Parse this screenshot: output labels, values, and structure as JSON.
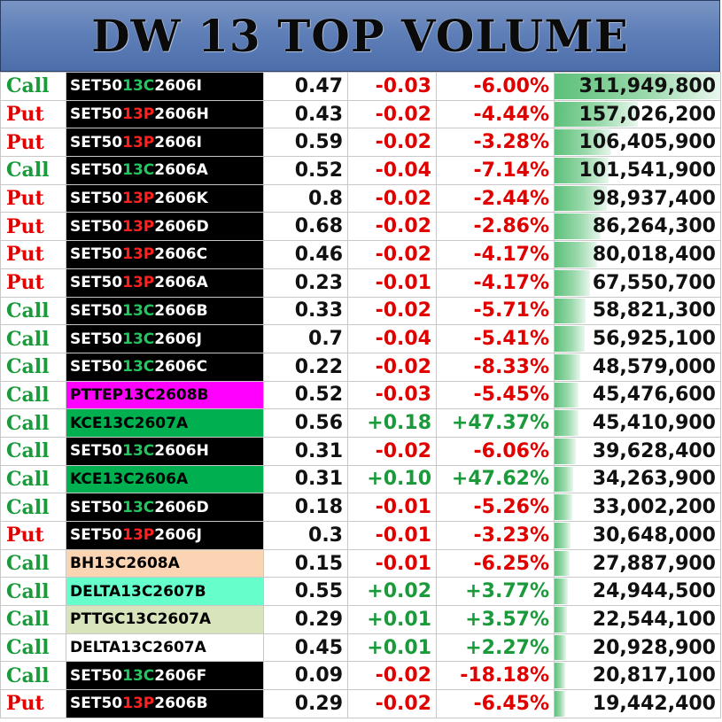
{
  "header": {
    "title": "DW 13 TOP VOLUME"
  },
  "colors": {
    "call": "#1a9a3a",
    "put": "#e00000",
    "set_bg": "#000000",
    "bar": "#5cc07a"
  },
  "rows": [
    {
      "type": "Call",
      "name": {
        "kind": "set",
        "a": "SET50",
        "b": "13C",
        "c": "2606I"
      },
      "price": "0.47",
      "change": "-0.03",
      "pct": "-6.00%",
      "volume": "311,949,800",
      "volume_value": 311949800
    },
    {
      "type": "Put",
      "name": {
        "kind": "set",
        "a": "SET50",
        "b": "13P",
        "c": "2606H"
      },
      "price": "0.43",
      "change": "-0.02",
      "pct": "-4.44%",
      "volume": "157,026,200",
      "volume_value": 157026200
    },
    {
      "type": "Put",
      "name": {
        "kind": "set",
        "a": "SET50",
        "b": "13P",
        "c": "2606I"
      },
      "price": "0.59",
      "change": "-0.02",
      "pct": "-3.28%",
      "volume": "106,405,900",
      "volume_value": 106405900
    },
    {
      "type": "Call",
      "name": {
        "kind": "set",
        "a": "SET50",
        "b": "13C",
        "c": "2606A"
      },
      "price": "0.52",
      "change": "-0.04",
      "pct": "-7.14%",
      "volume": "101,541,900",
      "volume_value": 101541900
    },
    {
      "type": "Put",
      "name": {
        "kind": "set",
        "a": "SET50",
        "b": "13P",
        "c": "2606K"
      },
      "price": "0.8",
      "change": "-0.02",
      "pct": "-2.44%",
      "volume": "98,937,400",
      "volume_value": 98937400
    },
    {
      "type": "Put",
      "name": {
        "kind": "set",
        "a": "SET50",
        "b": "13P",
        "c": "2606D"
      },
      "price": "0.68",
      "change": "-0.02",
      "pct": "-2.86%",
      "volume": "86,264,300",
      "volume_value": 86264300
    },
    {
      "type": "Put",
      "name": {
        "kind": "set",
        "a": "SET50",
        "b": "13P",
        "c": "2606C"
      },
      "price": "0.46",
      "change": "-0.02",
      "pct": "-4.17%",
      "volume": "80,018,400",
      "volume_value": 80018400
    },
    {
      "type": "Put",
      "name": {
        "kind": "set",
        "a": "SET50",
        "b": "13P",
        "c": "2606A"
      },
      "price": "0.23",
      "change": "-0.01",
      "pct": "-4.17%",
      "volume": "67,550,700",
      "volume_value": 67550700
    },
    {
      "type": "Call",
      "name": {
        "kind": "set",
        "a": "SET50",
        "b": "13C",
        "c": "2606B"
      },
      "price": "0.33",
      "change": "-0.02",
      "pct": "-5.71%",
      "volume": "58,821,300",
      "volume_value": 58821300
    },
    {
      "type": "Call",
      "name": {
        "kind": "set",
        "a": "SET50",
        "b": "13C",
        "c": "2606J"
      },
      "price": "0.7",
      "change": "-0.04",
      "pct": "-5.41%",
      "volume": "56,925,100",
      "volume_value": 56925100
    },
    {
      "type": "Call",
      "name": {
        "kind": "set",
        "a": "SET50",
        "b": "13C",
        "c": "2606C"
      },
      "price": "0.22",
      "change": "-0.02",
      "pct": "-8.33%",
      "volume": "48,579,000",
      "volume_value": 48579000
    },
    {
      "type": "Call",
      "name": {
        "kind": "plain",
        "text": "PTTEP13C2608B",
        "bg": "#ff00ff",
        "fg": "#000000"
      },
      "price": "0.52",
      "change": "-0.03",
      "pct": "-5.45%",
      "volume": "45,476,600",
      "volume_value": 45476600
    },
    {
      "type": "Call",
      "name": {
        "kind": "plain",
        "text": "KCE13C2607A",
        "bg": "#00b050",
        "fg": "#000000"
      },
      "price": "0.56",
      "change": "+0.18",
      "pct": "+47.37%",
      "volume": "45,410,900",
      "volume_value": 45410900
    },
    {
      "type": "Call",
      "name": {
        "kind": "set",
        "a": "SET50",
        "b": "13C",
        "c": "2606H"
      },
      "price": "0.31",
      "change": "-0.02",
      "pct": "-6.06%",
      "volume": "39,628,400",
      "volume_value": 39628400
    },
    {
      "type": "Call",
      "name": {
        "kind": "plain",
        "text": "KCE13C2606A",
        "bg": "#00b050",
        "fg": "#000000"
      },
      "price": "0.31",
      "change": "+0.10",
      "pct": "+47.62%",
      "volume": "34,263,900",
      "volume_value": 34263900
    },
    {
      "type": "Call",
      "name": {
        "kind": "set",
        "a": "SET50",
        "b": "13C",
        "c": "2606D"
      },
      "price": "0.18",
      "change": "-0.01",
      "pct": "-5.26%",
      "volume": "33,002,200",
      "volume_value": 33002200
    },
    {
      "type": "Put",
      "name": {
        "kind": "set",
        "a": "SET50",
        "b": "13P",
        "c": "2606J"
      },
      "price": "0.3",
      "change": "-0.01",
      "pct": "-3.23%",
      "volume": "30,648,000",
      "volume_value": 30648000
    },
    {
      "type": "Call",
      "name": {
        "kind": "plain",
        "text": "BH13C2608A",
        "bg": "#fbd4b4",
        "fg": "#000000"
      },
      "price": "0.15",
      "change": "-0.01",
      "pct": "-6.25%",
      "volume": "27,887,900",
      "volume_value": 27887900
    },
    {
      "type": "Call",
      "name": {
        "kind": "plain",
        "text": "DELTA13C2607B",
        "bg": "#66ffcc",
        "fg": "#000000"
      },
      "price": "0.55",
      "change": "+0.02",
      "pct": "+3.77%",
      "volume": "24,944,500",
      "volume_value": 24944500
    },
    {
      "type": "Call",
      "name": {
        "kind": "plain",
        "text": "PTTGC13C2607A",
        "bg": "#d8e4bc",
        "fg": "#000000"
      },
      "price": "0.29",
      "change": "+0.01",
      "pct": "+3.57%",
      "volume": "22,544,100",
      "volume_value": 22544100
    },
    {
      "type": "Call",
      "name": {
        "kind": "plain",
        "text": "DELTA13C2607A",
        "bg": "#ffffff",
        "fg": "#000000"
      },
      "price": "0.45",
      "change": "+0.01",
      "pct": "+2.27%",
      "volume": "20,928,900",
      "volume_value": 20928900
    },
    {
      "type": "Call",
      "name": {
        "kind": "set",
        "a": "SET50",
        "b": "13C",
        "c": "2606F"
      },
      "price": "0.09",
      "change": "-0.02",
      "pct": "-18.18%",
      "volume": "20,817,100",
      "volume_value": 20817100
    },
    {
      "type": "Put",
      "name": {
        "kind": "set",
        "a": "SET50",
        "b": "13P",
        "c": "2606B"
      },
      "price": "0.29",
      "change": "-0.02",
      "pct": "-6.45%",
      "volume": "19,442,400",
      "volume_value": 19442400
    }
  ]
}
